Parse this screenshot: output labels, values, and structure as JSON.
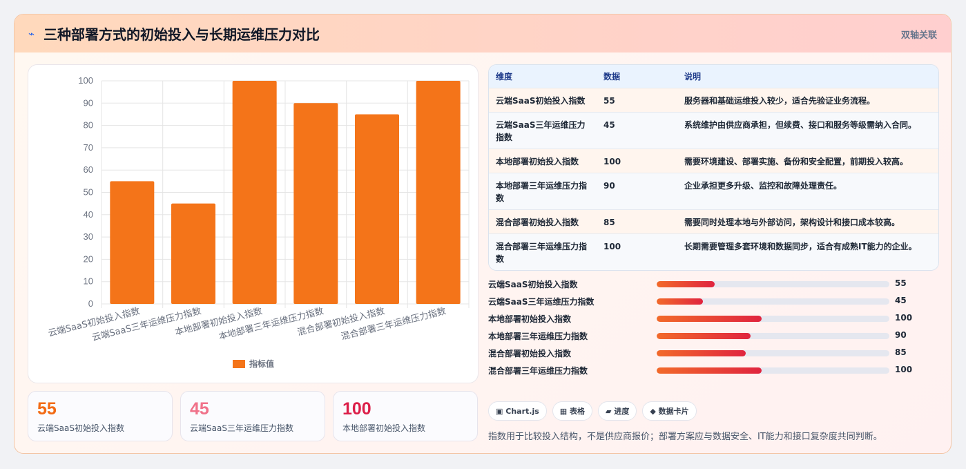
{
  "header": {
    "icon": "lightning-icon",
    "title": "三种部署方式的初始投入与长期运维压力对比",
    "tag": "双轴关联"
  },
  "chart_data": {
    "type": "bar",
    "categories": [
      "云端SaaS初始投入指数",
      "云端SaaS三年运维压力指数",
      "本地部署初始投入指数",
      "本地部署三年运维压力指数",
      "混合部署初始投入指数",
      "混合部署三年运维压力指数"
    ],
    "series": [
      {
        "name": "指标值",
        "values": [
          55,
          45,
          100,
          90,
          85,
          100
        ],
        "color": "#f47419"
      }
    ],
    "ylim": [
      0,
      100
    ],
    "yticks": [
      0,
      10,
      20,
      30,
      40,
      50,
      60,
      70,
      80,
      90,
      100
    ],
    "grid": true,
    "legend": "bottom"
  },
  "stats": [
    {
      "value": "55",
      "label": "云端SaaS初始投入指数",
      "color": "#f26a14"
    },
    {
      "value": "45",
      "label": "云端SaaS三年运维压力指数",
      "color": "#f0728a"
    },
    {
      "value": "100",
      "label": "本地部署初始投入指数",
      "color": "#dc1f49"
    }
  ],
  "table": {
    "headers": [
      "维度",
      "数据",
      "说明"
    ],
    "rows": [
      [
        "云端SaaS初始投入指数",
        "55",
        "服务器和基础运维投入较少，适合先验证业务流程。"
      ],
      [
        "云端SaaS三年运维压力指数",
        "45",
        "系统维护由供应商承担，但续费、接口和服务等级需纳入合同。"
      ],
      [
        "本地部署初始投入指数",
        "100",
        "需要环境建设、部署实施、备份和安全配置，前期投入较高。"
      ],
      [
        "本地部署三年运维压力指数",
        "90",
        "企业承担更多升级、监控和故障处理责任。"
      ],
      [
        "混合部署初始投入指数",
        "85",
        "需要同时处理本地与外部访问，架构设计和接口成本较高。"
      ],
      [
        "混合部署三年运维压力指数",
        "100",
        "长期需要管理多套环境和数据同步，适合有成熟IT能力的企业。"
      ]
    ]
  },
  "progress": [
    {
      "label": "云端SaaS初始投入指数",
      "value": "55",
      "fraction": 0.25
    },
    {
      "label": "云端SaaS三年运维压力指数",
      "value": "45",
      "fraction": 0.2
    },
    {
      "label": "本地部署初始投入指数",
      "value": "100",
      "fraction": 0.45
    },
    {
      "label": "本地部署三年运维压力指数",
      "value": "90",
      "fraction": 0.405
    },
    {
      "label": "混合部署初始投入指数",
      "value": "85",
      "fraction": 0.383
    },
    {
      "label": "混合部署三年运维压力指数",
      "value": "100",
      "fraction": 0.45
    }
  ],
  "chips": [
    {
      "icon": "window-icon",
      "glyph": "▣",
      "label": "Chart.js"
    },
    {
      "icon": "table-icon",
      "glyph": "▦",
      "label": "表格"
    },
    {
      "icon": "progress-icon",
      "glyph": "▰",
      "label": "进度"
    },
    {
      "icon": "diamond-icon",
      "glyph": "◆",
      "label": "数据卡片"
    }
  ],
  "footnote": "指数用于比较投入结构，不是供应商报价；部署方案应与数据安全、IT能力和接口复杂度共同判断。"
}
